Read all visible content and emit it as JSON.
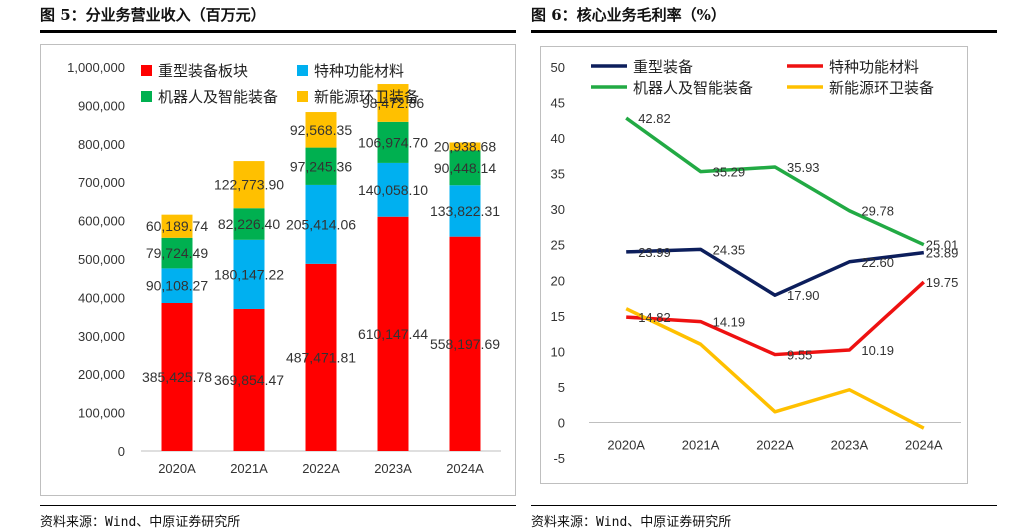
{
  "left_figure": {
    "title": "图 5：分业务营业收入（百万元）",
    "source": "资料来源：Wind、中原证券研究所"
  },
  "right_figure": {
    "title": "图 6：核心业务毛利率（%）",
    "source": "资料来源：Wind、中原证券研究所"
  },
  "colors": {
    "heavy_equipment": "#ff0000",
    "special_materials": "#00b0f0",
    "robots": "#00b050",
    "new_energy": "#ffc000",
    "line_heavy_equipment": "#0c1e5c",
    "line_special_materials": "#ee1111",
    "line_robots": "#22aa44",
    "line_new_energy": "#ffc000"
  },
  "chart_data": [
    {
      "type": "bar",
      "stacked": true,
      "categories": [
        "2020A",
        "2021A",
        "2022A",
        "2023A",
        "2024A"
      ],
      "ylim": [
        0,
        1000000
      ],
      "yticks": [
        "0",
        "100,000",
        "200,000",
        "300,000",
        "400,000",
        "500,000",
        "600,000",
        "700,000",
        "800,000",
        "900,000",
        "1,000,000"
      ],
      "legend_position": "top-left",
      "series": [
        {
          "name": "重型装备板块",
          "values": [
            385425.78,
            369854.47,
            487471.81,
            610147.44,
            558197.69
          ],
          "labels": [
            "385,425.78",
            "369,854.47",
            "487,471.81",
            "610,147.44",
            "558,197.69"
          ]
        },
        {
          "name": "特种功能材料",
          "values": [
            90108.27,
            180147.22,
            205414.06,
            140058.1,
            133822.31
          ],
          "labels": [
            "90,108.27",
            "180,147.22",
            "205,414.06",
            "140,058.10",
            "133,822.31"
          ]
        },
        {
          "name": "机器人及智能装备",
          "values": [
            79724.49,
            82226.4,
            97245.36,
            106974.7,
            90448.14
          ],
          "labels": [
            "79,724.49",
            "82,226.40",
            "97,245.36",
            "106,974.70",
            "90,448.14"
          ]
        },
        {
          "name": "新能源环卫装备",
          "values": [
            60189.74,
            122773.9,
            92568.35,
            98472.86,
            20938.68
          ],
          "labels": [
            "60,189.74",
            "122,773.90",
            "92,568.35",
            "98,472.86",
            "20,938.68"
          ]
        }
      ]
    },
    {
      "type": "line",
      "categories": [
        "2020A",
        "2021A",
        "2022A",
        "2023A",
        "2024A"
      ],
      "ylim": [
        -5,
        50
      ],
      "yticks": [
        "-5",
        "0",
        "5",
        "10",
        "15",
        "20",
        "25",
        "30",
        "35",
        "40",
        "45",
        "50"
      ],
      "legend_position": "top",
      "series": [
        {
          "name": "重型装备",
          "values": [
            23.99,
            24.35,
            17.9,
            22.6,
            23.89
          ],
          "labels": [
            "23.99",
            "24.35",
            "17.90",
            "22.60",
            "23.89"
          ]
        },
        {
          "name": "特种功能材料",
          "values": [
            14.82,
            14.19,
            9.55,
            10.19,
            19.75
          ],
          "labels": [
            "14.82",
            "14.19",
            "9.55",
            "10.19",
            "19.75"
          ]
        },
        {
          "name": "机器人及智能装备",
          "values": [
            42.82,
            35.29,
            35.93,
            29.78,
            25.01
          ],
          "labels": [
            "42.82",
            "35.29",
            "35.93",
            "29.78",
            "25.01"
          ]
        },
        {
          "name": "新能源环卫装备",
          "values": [
            16.0,
            11.0,
            1.5,
            4.6,
            -0.8
          ],
          "labels": [
            "",
            "",
            "",
            "",
            ""
          ]
        }
      ]
    }
  ]
}
